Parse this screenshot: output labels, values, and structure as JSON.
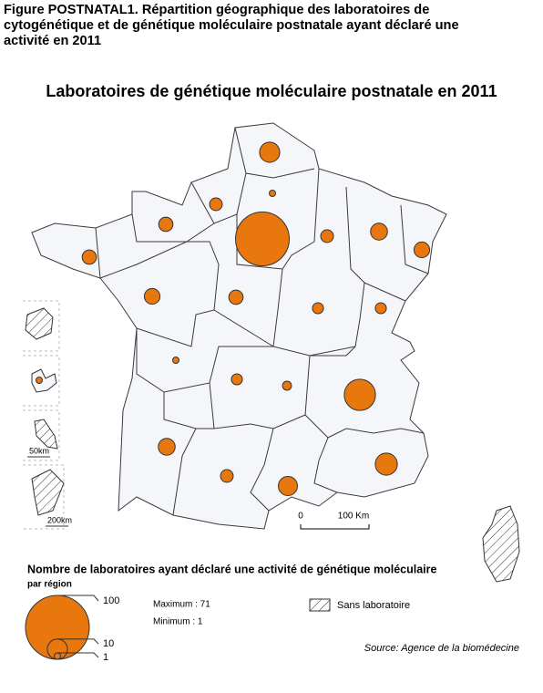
{
  "figure_title": "Figure POSTNATAL1. Répartition géographique des laboratoires de cytogénétique et de génétique moléculaire postnatale ayant déclaré une activité en 2011",
  "title": "Laboratoires de génétique moléculaire postnatale en 2011",
  "color": "#e8770e",
  "regions": {
    "values": [
      10,
      1,
      4,
      5,
      71,
      4,
      7,
      6,
      5,
      6,
      5,
      3,
      3,
      1,
      3,
      2,
      24,
      7,
      4,
      9,
      12,
      1
    ]
  },
  "legend": {
    "title": "Nombre de laboratoires ayant déclaré une activité de génétique moléculaire",
    "subtitle": "par région",
    "sizes": [
      100,
      10,
      1
    ],
    "maximum": "Maximum : 71",
    "minimum": "Minimum :  1",
    "hatched": "Sans laboratoire"
  },
  "source": "Source: Agence de la biomédecine",
  "scale": [
    "0",
    "100 Km"
  ],
  "inset_scales": [
    "50km",
    "200km"
  ]
}
